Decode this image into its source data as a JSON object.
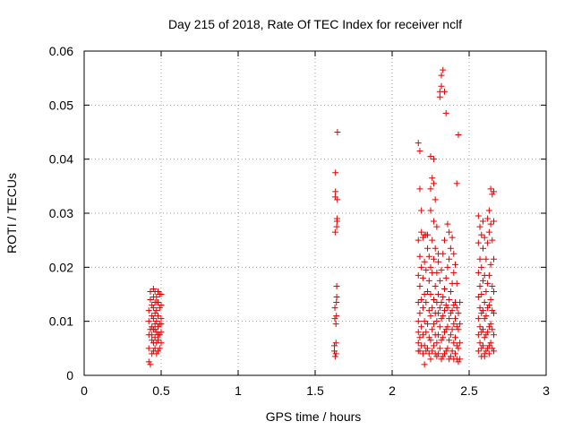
{
  "chart_data": {
    "type": "scatter",
    "title": "Day 215 of 2018, Rate Of TEC Index for receiver nclf",
    "xlabel": "GPS time / hours",
    "ylabel": "ROTI / TECUs",
    "xlim": [
      0,
      3
    ],
    "ylim": [
      0,
      0.06
    ],
    "xticks": [
      0,
      0.5,
      1,
      1.5,
      2,
      2.5,
      3
    ],
    "xtick_labels": [
      "0",
      "0.5",
      "1",
      "1.5",
      "2",
      "2.5",
      "3"
    ],
    "yticks": [
      0,
      0.01,
      0.02,
      0.03,
      0.04,
      0.05,
      0.06
    ],
    "ytick_labels": [
      "0",
      "0.01",
      "0.02",
      "0.03",
      "0.04",
      "0.05",
      "0.06"
    ],
    "grid": true,
    "marker": "+",
    "marker_color": "#e00000",
    "series": [
      {
        "name": "ROTI",
        "points": [
          [
            0.42,
            0.0025
          ],
          [
            0.43,
            0.002
          ],
          [
            0.42,
            0.005
          ],
          [
            0.42,
            0.0075
          ],
          [
            0.42,
            0.01
          ],
          [
            0.42,
            0.012
          ],
          [
            0.43,
            0.014
          ],
          [
            0.43,
            0.0155
          ],
          [
            0.44,
            0.004
          ],
          [
            0.44,
            0.0065
          ],
          [
            0.44,
            0.009
          ],
          [
            0.44,
            0.011
          ],
          [
            0.44,
            0.013
          ],
          [
            0.45,
            0.016
          ],
          [
            0.45,
            0.0045
          ],
          [
            0.45,
            0.006
          ],
          [
            0.45,
            0.0085
          ],
          [
            0.45,
            0.0105
          ],
          [
            0.45,
            0.0125
          ],
          [
            0.45,
            0.0145
          ],
          [
            0.46,
            0.005
          ],
          [
            0.46,
            0.007
          ],
          [
            0.46,
            0.0095
          ],
          [
            0.46,
            0.0115
          ],
          [
            0.46,
            0.0135
          ],
          [
            0.46,
            0.0155
          ],
          [
            0.47,
            0.004
          ],
          [
            0.47,
            0.006
          ],
          [
            0.47,
            0.008
          ],
          [
            0.47,
            0.01
          ],
          [
            0.47,
            0.012
          ],
          [
            0.47,
            0.0145
          ],
          [
            0.48,
            0.0045
          ],
          [
            0.48,
            0.0065
          ],
          [
            0.48,
            0.009
          ],
          [
            0.48,
            0.011
          ],
          [
            0.48,
            0.0135
          ],
          [
            0.48,
            0.0155
          ],
          [
            0.49,
            0.005
          ],
          [
            0.49,
            0.0075
          ],
          [
            0.49,
            0.0095
          ],
          [
            0.49,
            0.0125
          ],
          [
            0.49,
            0.015
          ],
          [
            0.5,
            0.006
          ],
          [
            0.5,
            0.008
          ],
          [
            0.5,
            0.0105
          ],
          [
            0.5,
            0.013
          ],
          [
            0.5,
            0.015
          ],
          [
            0.43,
            0.0085
          ],
          [
            0.44,
            0.0075
          ],
          [
            0.46,
            0.0085
          ],
          [
            0.48,
            0.0075
          ],
          [
            0.5,
            0.0095
          ],
          [
            0.47,
            0.0135
          ],
          [
            1.625,
            0.0045
          ],
          [
            1.625,
            0.0055
          ],
          [
            1.628,
            0.0105
          ],
          [
            1.628,
            0.0125
          ],
          [
            1.63,
            0.0265
          ],
          [
            1.63,
            0.033
          ],
          [
            1.632,
            0.034
          ],
          [
            1.632,
            0.0375
          ],
          [
            1.635,
            0.004
          ],
          [
            1.635,
            0.006
          ],
          [
            1.635,
            0.0095
          ],
          [
            1.638,
            0.011
          ],
          [
            1.638,
            0.0135
          ],
          [
            1.64,
            0.0145
          ],
          [
            1.64,
            0.0165
          ],
          [
            1.64,
            0.0275
          ],
          [
            1.642,
            0.0285
          ],
          [
            1.642,
            0.029
          ],
          [
            1.644,
            0.0325
          ],
          [
            1.645,
            0.045
          ],
          [
            1.63,
            0.0035
          ],
          [
            2.17,
            0.0045
          ],
          [
            2.17,
            0.006
          ],
          [
            2.17,
            0.008
          ],
          [
            2.17,
            0.01
          ],
          [
            2.17,
            0.0135
          ],
          [
            2.17,
            0.0185
          ],
          [
            2.17,
            0.025
          ],
          [
            2.17,
            0.043
          ],
          [
            2.18,
            0.0045
          ],
          [
            2.18,
            0.007
          ],
          [
            2.18,
            0.0115
          ],
          [
            2.18,
            0.0165
          ],
          [
            2.18,
            0.022
          ],
          [
            2.18,
            0.0345
          ],
          [
            2.18,
            0.0415
          ],
          [
            2.19,
            0.0055
          ],
          [
            2.19,
            0.009
          ],
          [
            2.19,
            0.014
          ],
          [
            2.19,
            0.02
          ],
          [
            2.19,
            0.0265
          ],
          [
            2.19,
            0.0305
          ],
          [
            2.2,
            0.004
          ],
          [
            2.2,
            0.0075
          ],
          [
            2.2,
            0.0125
          ],
          [
            2.2,
            0.018
          ],
          [
            2.2,
            0.0255
          ],
          [
            2.21,
            0.002
          ],
          [
            2.21,
            0.0055
          ],
          [
            2.21,
            0.01
          ],
          [
            2.21,
            0.015
          ],
          [
            2.21,
            0.021
          ],
          [
            2.21,
            0.026
          ],
          [
            2.22,
            0.0045
          ],
          [
            2.22,
            0.008
          ],
          [
            2.22,
            0.0135
          ],
          [
            2.22,
            0.0195
          ],
          [
            2.22,
            0.026
          ],
          [
            2.23,
            0.005
          ],
          [
            2.23,
            0.0095
          ],
          [
            2.23,
            0.0155
          ],
          [
            2.23,
            0.0235
          ],
          [
            2.23,
            0.026
          ],
          [
            2.24,
            0.004
          ],
          [
            2.24,
            0.007
          ],
          [
            2.24,
            0.012
          ],
          [
            2.24,
            0.0175
          ],
          [
            2.24,
            0.022
          ],
          [
            2.25,
            0.003
          ],
          [
            2.25,
            0.0065
          ],
          [
            2.25,
            0.011
          ],
          [
            2.25,
            0.015
          ],
          [
            2.25,
            0.02
          ],
          [
            2.25,
            0.0305
          ],
          [
            2.25,
            0.0345
          ],
          [
            2.25,
            0.0405
          ],
          [
            2.26,
            0.0045
          ],
          [
            2.26,
            0.0085
          ],
          [
            2.26,
            0.0125
          ],
          [
            2.26,
            0.019
          ],
          [
            2.26,
            0.025
          ],
          [
            2.26,
            0.0365
          ],
          [
            2.27,
            0.0055
          ],
          [
            2.27,
            0.0095
          ],
          [
            2.27,
            0.014
          ],
          [
            2.27,
            0.0215
          ],
          [
            2.27,
            0.0285
          ],
          [
            2.27,
            0.0355
          ],
          [
            2.27,
            0.04
          ],
          [
            2.28,
            0.004
          ],
          [
            2.28,
            0.0075
          ],
          [
            2.28,
            0.0115
          ],
          [
            2.28,
            0.0165
          ],
          [
            2.28,
            0.0235
          ],
          [
            2.28,
            0.0325
          ],
          [
            2.29,
            0.0035
          ],
          [
            2.29,
            0.006
          ],
          [
            2.29,
            0.01
          ],
          [
            2.29,
            0.0135
          ],
          [
            2.29,
            0.019
          ],
          [
            2.29,
            0.0275
          ],
          [
            2.3,
            0.004
          ],
          [
            2.3,
            0.0075
          ],
          [
            2.3,
            0.0115
          ],
          [
            2.3,
            0.015
          ],
          [
            2.3,
            0.021
          ],
          [
            2.3,
            0.0225
          ],
          [
            2.31,
            0.005
          ],
          [
            2.31,
            0.009
          ],
          [
            2.31,
            0.0125
          ],
          [
            2.31,
            0.0175
          ],
          [
            2.31,
            0.0515
          ],
          [
            2.31,
            0.0525
          ],
          [
            2.32,
            0.003
          ],
          [
            2.32,
            0.0065
          ],
          [
            2.32,
            0.0105
          ],
          [
            2.32,
            0.0135
          ],
          [
            2.32,
            0.0195
          ],
          [
            2.32,
            0.0535
          ],
          [
            2.32,
            0.0555
          ],
          [
            2.33,
            0.0035
          ],
          [
            2.33,
            0.007
          ],
          [
            2.33,
            0.011
          ],
          [
            2.33,
            0.0145
          ],
          [
            2.33,
            0.0225
          ],
          [
            2.33,
            0.0565
          ],
          [
            2.34,
            0.004
          ],
          [
            2.34,
            0.008
          ],
          [
            2.34,
            0.012
          ],
          [
            2.34,
            0.016
          ],
          [
            2.34,
            0.025
          ],
          [
            2.34,
            0.0525
          ],
          [
            2.35,
            0.0045
          ],
          [
            2.35,
            0.0085
          ],
          [
            2.35,
            0.013
          ],
          [
            2.35,
            0.018
          ],
          [
            2.35,
            0.0485
          ],
          [
            2.36,
            0.005
          ],
          [
            2.36,
            0.009
          ],
          [
            2.36,
            0.0125
          ],
          [
            2.36,
            0.02
          ],
          [
            2.36,
            0.028
          ],
          [
            2.37,
            0.003
          ],
          [
            2.37,
            0.0065
          ],
          [
            2.37,
            0.0105
          ],
          [
            2.37,
            0.014
          ],
          [
            2.37,
            0.0215
          ],
          [
            2.37,
            0.0265
          ],
          [
            2.38,
            0.0035
          ],
          [
            2.38,
            0.0075
          ],
          [
            2.38,
            0.0115
          ],
          [
            2.38,
            0.0155
          ],
          [
            2.38,
            0.0235
          ],
          [
            2.39,
            0.0045
          ],
          [
            2.39,
            0.0085
          ],
          [
            2.39,
            0.012
          ],
          [
            2.39,
            0.017
          ],
          [
            2.39,
            0.0255
          ],
          [
            2.4,
            0.003
          ],
          [
            2.4,
            0.006
          ],
          [
            2.4,
            0.0095
          ],
          [
            2.4,
            0.013
          ],
          [
            2.4,
            0.019
          ],
          [
            2.4,
            0.0225
          ],
          [
            2.41,
            0.004
          ],
          [
            2.41,
            0.007
          ],
          [
            2.41,
            0.0105
          ],
          [
            2.41,
            0.0135
          ],
          [
            2.41,
            0.0205
          ],
          [
            2.42,
            0.003
          ],
          [
            2.42,
            0.0055
          ],
          [
            2.42,
            0.009
          ],
          [
            2.42,
            0.0125
          ],
          [
            2.42,
            0.017
          ],
          [
            2.42,
            0.0355
          ],
          [
            2.43,
            0.0025
          ],
          [
            2.43,
            0.005
          ],
          [
            2.43,
            0.0085
          ],
          [
            2.43,
            0.0115
          ],
          [
            2.43,
            0.0445
          ],
          [
            2.44,
            0.003
          ],
          [
            2.44,
            0.006
          ],
          [
            2.44,
            0.0095
          ],
          [
            2.44,
            0.0135
          ],
          [
            2.56,
            0.0045
          ],
          [
            2.56,
            0.0075
          ],
          [
            2.56,
            0.0105
          ],
          [
            2.56,
            0.0145
          ],
          [
            2.56,
            0.019
          ],
          [
            2.56,
            0.0245
          ],
          [
            2.56,
            0.0295
          ],
          [
            2.57,
            0.006
          ],
          [
            2.57,
            0.009
          ],
          [
            2.57,
            0.0125
          ],
          [
            2.57,
            0.0165
          ],
          [
            2.57,
            0.0215
          ],
          [
            2.57,
            0.0275
          ],
          [
            2.58,
            0.005
          ],
          [
            2.58,
            0.008
          ],
          [
            2.58,
            0.0115
          ],
          [
            2.58,
            0.015
          ],
          [
            2.58,
            0.02
          ],
          [
            2.58,
            0.026
          ],
          [
            2.59,
            0.0055
          ],
          [
            2.59,
            0.0085
          ],
          [
            2.59,
            0.012
          ],
          [
            2.59,
            0.0175
          ],
          [
            2.59,
            0.0235
          ],
          [
            2.59,
            0.0285
          ],
          [
            2.6,
            0.004
          ],
          [
            2.6,
            0.007
          ],
          [
            2.6,
            0.0105
          ],
          [
            2.6,
            0.0135
          ],
          [
            2.6,
            0.0185
          ],
          [
            2.6,
            0.0255
          ],
          [
            2.61,
            0.0045
          ],
          [
            2.61,
            0.0075
          ],
          [
            2.61,
            0.011
          ],
          [
            2.61,
            0.0155
          ],
          [
            2.61,
            0.0215
          ],
          [
            2.62,
            0.005
          ],
          [
            2.62,
            0.008
          ],
          [
            2.62,
            0.0125
          ],
          [
            2.62,
            0.017
          ],
          [
            2.62,
            0.0245
          ],
          [
            2.62,
            0.029
          ],
          [
            2.63,
            0.0055
          ],
          [
            2.63,
            0.009
          ],
          [
            2.63,
            0.013
          ],
          [
            2.63,
            0.0185
          ],
          [
            2.63,
            0.0265
          ],
          [
            2.63,
            0.0305
          ],
          [
            2.64,
            0.006
          ],
          [
            2.64,
            0.0095
          ],
          [
            2.64,
            0.014
          ],
          [
            2.64,
            0.0205
          ],
          [
            2.64,
            0.028
          ],
          [
            2.64,
            0.0345
          ],
          [
            2.65,
            0.005
          ],
          [
            2.65,
            0.0085
          ],
          [
            2.65,
            0.012
          ],
          [
            2.65,
            0.0165
          ],
          [
            2.65,
            0.025
          ],
          [
            2.65,
            0.0335
          ],
          [
            2.66,
            0.0045
          ],
          [
            2.66,
            0.0075
          ],
          [
            2.66,
            0.0115
          ],
          [
            2.66,
            0.0155
          ],
          [
            2.66,
            0.0215
          ],
          [
            2.66,
            0.0285
          ],
          [
            2.66,
            0.034
          ],
          [
            2.6,
            0.0035
          ],
          [
            2.58,
            0.0035
          ],
          [
            2.63,
            0.004
          ]
        ]
      }
    ]
  }
}
